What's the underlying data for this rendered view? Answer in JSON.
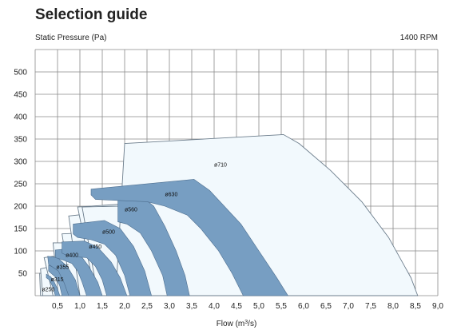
{
  "page": {
    "title": "Selection guide",
    "ylabel": "Static Pressure (Pa)",
    "rpm": "1400 RPM",
    "xlabel_text": "Flow (m",
    "xlabel_sup": "3",
    "xlabel_tail": "/s)"
  },
  "chart_data": {
    "type": "area",
    "title": "Selection guide",
    "ylabel": "Static Pressure (Pa)",
    "xlabel": "Flow (m3/s)",
    "annotation": "1400 RPM",
    "xlim": [
      0,
      9.0
    ],
    "ylim": [
      0,
      550
    ],
    "x_ticks": [
      "0,5",
      "1,0",
      "1,5",
      "2,0",
      "2,5",
      "3,0",
      "3,5",
      "4,0",
      "4,5",
      "5,0",
      "5,5",
      "6,0",
      "6,5",
      "7,0",
      "7,5",
      "8,0",
      "8,5",
      "9,0"
    ],
    "y_ticks": [
      "50",
      "100",
      "150",
      "200",
      "250",
      "300",
      "350",
      "400",
      "450",
      "500"
    ],
    "grid": true,
    "legend": "none",
    "colors": {
      "outline": "#6c7d8c",
      "envelope_fill": "#f2f9fd",
      "band_fill": "#779ec2",
      "band_stroke": "#4d6e8f"
    },
    "series": [
      {
        "name": "ø250",
        "label_at": [
          0.15,
          10
        ],
        "envelope": [
          [
            0.1,
            50
          ],
          [
            0.2,
            50
          ],
          [
            0.35,
            35
          ],
          [
            0.42,
            0
          ],
          [
            0.12,
            0
          ]
        ],
        "band": [
          [
            0.25,
            48
          ],
          [
            0.35,
            42
          ],
          [
            0.42,
            32
          ],
          [
            0.5,
            15
          ],
          [
            0.55,
            0
          ],
          [
            0.45,
            0
          ],
          [
            0.4,
            18
          ],
          [
            0.32,
            35
          ],
          [
            0.25,
            40
          ]
        ]
      },
      {
        "name": "ø315",
        "label_at": [
          0.35,
          32
        ],
        "envelope": [
          [
            0.12,
            60
          ],
          [
            0.35,
            65
          ],
          [
            0.55,
            48
          ],
          [
            0.7,
            20
          ],
          [
            0.75,
            0
          ],
          [
            0.17,
            0
          ]
        ],
        "band": [
          [
            0.3,
            68
          ],
          [
            0.45,
            62
          ],
          [
            0.6,
            48
          ],
          [
            0.75,
            25
          ],
          [
            0.82,
            0
          ],
          [
            0.6,
            0
          ],
          [
            0.55,
            22
          ],
          [
            0.45,
            42
          ],
          [
            0.3,
            55
          ]
        ]
      },
      {
        "name": "ø355",
        "label_at": [
          0.47,
          60
        ],
        "envelope": [
          [
            0.2,
            85
          ],
          [
            0.4,
            88
          ],
          [
            0.7,
            72
          ],
          [
            0.95,
            40
          ],
          [
            1.05,
            0
          ],
          [
            0.4,
            0
          ]
        ],
        "band": [
          [
            0.28,
            88
          ],
          [
            0.5,
            85
          ],
          [
            0.72,
            65
          ],
          [
            0.9,
            35
          ],
          [
            1.0,
            0
          ],
          [
            0.75,
            0
          ],
          [
            0.65,
            28
          ],
          [
            0.52,
            55
          ],
          [
            0.3,
            70
          ]
        ]
      },
      {
        "name": "ø400",
        "label_at": [
          0.68,
          87
        ],
        "envelope": [
          [
            0.4,
            118
          ],
          [
            0.7,
            118
          ],
          [
            1.05,
            95
          ],
          [
            1.3,
            50
          ],
          [
            1.5,
            0
          ],
          [
            0.52,
            0
          ]
        ],
        "band": [
          [
            0.45,
            102
          ],
          [
            0.75,
            105
          ],
          [
            1.0,
            92
          ],
          [
            1.2,
            65
          ],
          [
            1.4,
            30
          ],
          [
            1.5,
            0
          ],
          [
            1.15,
            0
          ],
          [
            1.05,
            30
          ],
          [
            0.95,
            55
          ],
          [
            0.82,
            72
          ],
          [
            0.62,
            80
          ],
          [
            0.45,
            85
          ]
        ]
      },
      {
        "name": "ø450",
        "label_at": [
          1.2,
          105
        ],
        "envelope": [
          [
            0.6,
            138
          ],
          [
            1.1,
            140
          ],
          [
            1.5,
            120
          ],
          [
            1.8,
            80
          ],
          [
            2.1,
            0
          ],
          [
            0.82,
            0
          ]
        ],
        "band": [
          [
            0.6,
            120
          ],
          [
            1.1,
            122
          ],
          [
            1.4,
            108
          ],
          [
            1.7,
            75
          ],
          [
            1.9,
            40
          ],
          [
            2.05,
            0
          ],
          [
            1.6,
            0
          ],
          [
            1.5,
            35
          ],
          [
            1.35,
            65
          ],
          [
            1.15,
            85
          ],
          [
            0.75,
            88
          ],
          [
            0.6,
            95
          ]
        ]
      },
      {
        "name": "ø500",
        "label_at": [
          1.5,
          138
        ],
        "envelope": [
          [
            0.75,
            178
          ],
          [
            1.4,
            185
          ],
          [
            1.9,
            155
          ],
          [
            2.2,
            110
          ],
          [
            2.45,
            60
          ],
          [
            2.65,
            0
          ],
          [
            1.0,
            0
          ]
        ],
        "band": [
          [
            0.85,
            160
          ],
          [
            1.55,
            168
          ],
          [
            1.9,
            150
          ],
          [
            2.2,
            110
          ],
          [
            2.45,
            55
          ],
          [
            2.6,
            0
          ],
          [
            2.12,
            0
          ],
          [
            2.0,
            45
          ],
          [
            1.8,
            90
          ],
          [
            1.55,
            115
          ],
          [
            1.25,
            125
          ],
          [
            0.95,
            130
          ],
          [
            0.85,
            138
          ]
        ]
      },
      {
        "name": "ø560",
        "label_at": [
          2.0,
          188
        ],
        "envelope": [
          [
            0.95,
            198
          ],
          [
            2.0,
            205
          ],
          [
            2.6,
            175
          ],
          [
            3.0,
            120
          ],
          [
            3.3,
            60
          ],
          [
            3.5,
            0
          ],
          [
            1.35,
            0
          ]
        ],
        "band": [
          [
            1.85,
            225
          ],
          [
            2.3,
            228
          ],
          [
            2.65,
            200
          ],
          [
            2.9,
            155
          ],
          [
            3.15,
            100
          ],
          [
            3.35,
            45
          ],
          [
            3.45,
            0
          ],
          [
            2.95,
            0
          ],
          [
            2.85,
            45
          ],
          [
            2.6,
            100
          ],
          [
            2.35,
            140
          ],
          [
            2.05,
            160
          ],
          [
            1.85,
            165
          ]
        ]
      },
      {
        "name": "ø630",
        "label_at": [
          2.9,
          222
        ],
        "envelope": [
          [
            1.05,
            198
          ],
          [
            1.85,
            200
          ],
          [
            2.3,
            228
          ],
          [
            3.5,
            228
          ],
          [
            3.9,
            190
          ],
          [
            4.6,
            100
          ],
          [
            5.0,
            30
          ],
          [
            5.15,
            0
          ],
          [
            1.4,
            0
          ]
        ],
        "band": [
          [
            1.25,
            238
          ],
          [
            3.55,
            260
          ],
          [
            3.9,
            235
          ],
          [
            4.6,
            160
          ],
          [
            5.0,
            100
          ],
          [
            5.4,
            40
          ],
          [
            5.65,
            0
          ],
          [
            4.65,
            0
          ],
          [
            4.4,
            50
          ],
          [
            4.1,
            100
          ],
          [
            3.7,
            150
          ],
          [
            3.4,
            180
          ],
          [
            2.9,
            200
          ],
          [
            2.5,
            210
          ],
          [
            1.35,
            215
          ],
          [
            1.25,
            225
          ]
        ]
      },
      {
        "name": "ø710",
        "label_at": [
          4.0,
          288
        ],
        "envelope": [
          [
            2.0,
            340
          ],
          [
            5.55,
            360
          ],
          [
            5.9,
            340
          ],
          [
            6.6,
            280
          ],
          [
            7.3,
            210
          ],
          [
            7.9,
            130
          ],
          [
            8.4,
            40
          ],
          [
            8.55,
            0
          ],
          [
            1.8,
            0
          ]
        ],
        "band": []
      }
    ]
  }
}
